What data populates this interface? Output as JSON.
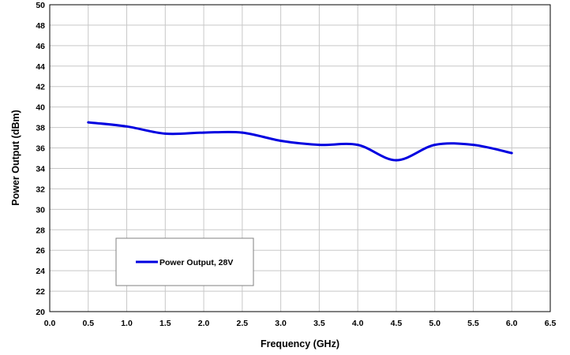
{
  "chart_data": {
    "type": "line",
    "title": "",
    "xlabel": "Frequency (GHz)",
    "ylabel": "Power Output (dBm)",
    "xlim": [
      0.0,
      6.5
    ],
    "ylim": [
      20,
      50
    ],
    "x_ticks": [
      "0.0",
      "0.5",
      "1.0",
      "1.5",
      "2.0",
      "2.5",
      "3.0",
      "3.5",
      "4.0",
      "4.5",
      "5.0",
      "5.5",
      "6.0",
      "6.5"
    ],
    "y_ticks": [
      "20",
      "22",
      "24",
      "26",
      "28",
      "30",
      "32",
      "34",
      "36",
      "38",
      "40",
      "42",
      "44",
      "46",
      "48",
      "50"
    ],
    "grid": true,
    "legend": "lower-left",
    "series": [
      {
        "name": "Power Output, 28V",
        "color": "#0000e0",
        "x": [
          0.5,
          1.0,
          1.5,
          2.0,
          2.5,
          3.0,
          3.5,
          4.0,
          4.5,
          5.0,
          5.5,
          6.0
        ],
        "y": [
          38.5,
          38.1,
          37.4,
          37.5,
          37.5,
          36.7,
          36.3,
          36.3,
          34.8,
          36.3,
          36.3,
          35.5
        ]
      }
    ]
  }
}
